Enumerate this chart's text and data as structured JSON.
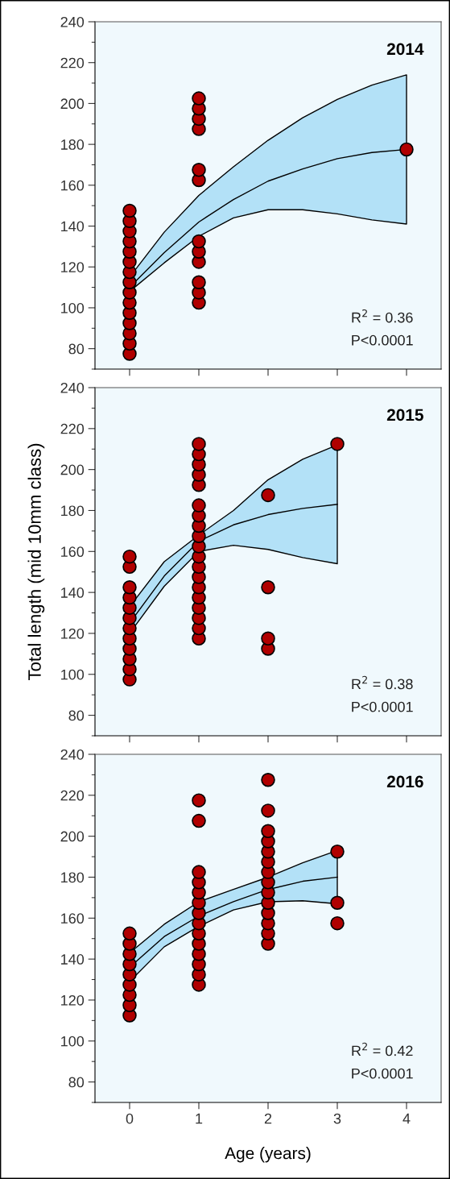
{
  "chart_data": [
    {
      "type": "scatter",
      "title": "2014",
      "xlim": [
        -0.5,
        4.5
      ],
      "ylim": [
        70,
        240
      ],
      "xticks": [
        0,
        1,
        2,
        3,
        4
      ],
      "yticks": [
        {
          "value": 70,
          "label": null
        },
        80,
        {
          "value": 90,
          "label": null
        },
        100,
        {
          "value": 110,
          "label": null
        },
        120,
        {
          "value": 130,
          "label": null
        },
        140,
        {
          "value": 150,
          "label": null
        },
        160,
        {
          "value": 170,
          "label": null
        },
        180,
        {
          "value": 190,
          "label": null
        },
        200,
        {
          "value": 210,
          "label": null
        },
        220,
        {
          "value": 230,
          "label": null
        },
        240
      ],
      "tick_labels": "y",
      "grid": false,
      "legend": false,
      "marker": "circle",
      "annotations": [
        "R$^{2}$ = 0.36",
        "P<0.0001"
      ],
      "series": [
        {
          "color": "#b00000",
          "x": [
            0,
            0,
            0,
            0,
            0,
            0,
            0,
            0,
            0,
            0,
            0,
            0,
            0,
            0,
            0,
            1,
            1,
            1,
            1,
            1,
            1,
            1,
            1,
            1,
            1,
            1,
            1,
            4
          ],
          "values": [
            77.5,
            82.5,
            87.5,
            92.5,
            97.5,
            102.5,
            107.5,
            112.5,
            117.5,
            122.5,
            127.5,
            132.5,
            137.5,
            142.5,
            147.5,
            102.5,
            107.5,
            112.5,
            122.5,
            127.5,
            132.5,
            162.5,
            167.5,
            187.5,
            192.5,
            197.5,
            202.5,
            177.5
          ]
        },
        {
          "type": "line",
          "marker": "none",
          "color": "#000000",
          "x": [
            0,
            0.5,
            1,
            1.5,
            2,
            2.5,
            3,
            3.5,
            4
          ],
          "values": [
            110,
            127,
            142,
            153,
            162,
            168,
            173,
            176,
            177.5
          ],
          "lower": [
            108,
            122,
            135,
            144,
            148,
            148,
            146,
            143,
            141
          ],
          "upper": [
            115,
            137,
            155,
            169,
            182,
            193,
            202,
            209,
            214
          ]
        }
      ]
    },
    {
      "type": "scatter",
      "title": "2015",
      "ylabel": "Total length (mid 10mm class)",
      "xlim": [
        -0.5,
        4.5
      ],
      "ylim": [
        70,
        240
      ],
      "xticks": [
        0,
        1,
        2,
        3,
        4
      ],
      "yticks": [
        {
          "value": 70,
          "label": null
        },
        80,
        {
          "value": 90,
          "label": null
        },
        100,
        {
          "value": 110,
          "label": null
        },
        120,
        {
          "value": 130,
          "label": null
        },
        140,
        {
          "value": 150,
          "label": null
        },
        160,
        {
          "value": 170,
          "label": null
        },
        180,
        {
          "value": 190,
          "label": null
        },
        200,
        {
          "value": 210,
          "label": null
        },
        220,
        {
          "value": 230,
          "label": null
        },
        240
      ],
      "tick_labels": "y",
      "grid": false,
      "legend": false,
      "marker": "circle",
      "annotations": [
        "R$^{2}$ = 0.38",
        "P<0.0001"
      ],
      "series": [
        {
          "color": "#b00000",
          "x": [
            0,
            0,
            0,
            0,
            0,
            0,
            0,
            0,
            0,
            0,
            0,
            0,
            1,
            1,
            1,
            1,
            1,
            1,
            1,
            1,
            1,
            1,
            1,
            1,
            1,
            1,
            1,
            1,
            1,
            1,
            1,
            2,
            2,
            2,
            2,
            3
          ],
          "values": [
            97.5,
            102.5,
            107.5,
            112.5,
            117.5,
            122.5,
            127.5,
            132.5,
            137.5,
            142.5,
            152.5,
            157.5,
            117.5,
            122.5,
            127.5,
            132.5,
            137.5,
            142.5,
            147.5,
            152.5,
            157.5,
            162.5,
            167.5,
            172.5,
            177.5,
            182.5,
            192.5,
            197.5,
            202.5,
            207.5,
            212.5,
            112.5,
            117.5,
            142.5,
            187.5,
            212.5
          ]
        },
        {
          "type": "line",
          "marker": "none",
          "color": "#000000",
          "x": [
            0,
            0.5,
            1,
            1.5,
            2,
            2.5,
            3
          ],
          "values": [
            125,
            148,
            165,
            173,
            178,
            181,
            183
          ],
          "lower": [
            120,
            143,
            160,
            163,
            161,
            157,
            154
          ],
          "upper": [
            133,
            155,
            168,
            180,
            195,
            205,
            212
          ]
        }
      ]
    },
    {
      "type": "scatter",
      "title": "2016",
      "xlabel": "Age (years)",
      "xlim": [
        -0.5,
        4.5
      ],
      "ylim": [
        70,
        240
      ],
      "xticks": [
        0,
        1,
        2,
        3,
        4
      ],
      "yticks": [
        {
          "value": 70,
          "label": null
        },
        80,
        {
          "value": 90,
          "label": null
        },
        100,
        {
          "value": 110,
          "label": null
        },
        120,
        {
          "value": 130,
          "label": null
        },
        140,
        {
          "value": 150,
          "label": null
        },
        160,
        {
          "value": 170,
          "label": null
        },
        180,
        {
          "value": 190,
          "label": null
        },
        200,
        {
          "value": 210,
          "label": null
        },
        220,
        {
          "value": 230,
          "label": null
        },
        240
      ],
      "grid": false,
      "legend": false,
      "marker": "circle",
      "annotations": [
        "R$^{2}$ = 0.42",
        "P<0.0001"
      ],
      "series": [
        {
          "color": "#b00000",
          "x": [
            0,
            0,
            0,
            0,
            0,
            0,
            0,
            0,
            0,
            1,
            1,
            1,
            1,
            1,
            1,
            1,
            1,
            1,
            1,
            1,
            1,
            1,
            1,
            2,
            2,
            2,
            2,
            2,
            2,
            2,
            2,
            2,
            2,
            2,
            2,
            2,
            2,
            3,
            3,
            3
          ],
          "values": [
            112.5,
            117.5,
            122.5,
            127.5,
            132.5,
            137.5,
            142.5,
            147.5,
            152.5,
            127.5,
            132.5,
            137.5,
            142.5,
            147.5,
            152.5,
            157.5,
            162.5,
            167.5,
            172.5,
            177.5,
            182.5,
            207.5,
            217.5,
            147.5,
            152.5,
            157.5,
            162.5,
            167.5,
            172.5,
            177.5,
            182.5,
            187.5,
            192.5,
            197.5,
            202.5,
            212.5,
            227.5,
            157.5,
            167.5,
            192.5
          ]
        },
        {
          "type": "line",
          "marker": "none",
          "color": "#000000",
          "x": [
            0,
            0.5,
            1,
            1.5,
            2,
            2.5,
            3
          ],
          "values": [
            136,
            151,
            161,
            168,
            174,
            178,
            180
          ],
          "lower": [
            129,
            146,
            156,
            164,
            168,
            168.5,
            167
          ],
          "upper": [
            143,
            157,
            168,
            174,
            180,
            187,
            193
          ]
        }
      ]
    }
  ]
}
